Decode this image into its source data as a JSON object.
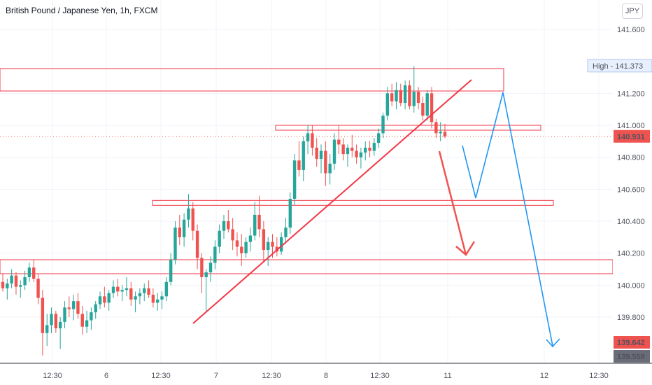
{
  "title": "British Pound / Japanese Yen, 1h, FXCM",
  "currency": "JPY",
  "chart_data": {
    "type": "candlestick",
    "y_ticks": [
      "141.600",
      "141.200",
      "141.000",
      "140.800",
      "140.600",
      "140.400",
      "140.200",
      "140.000",
      "139.800"
    ],
    "y_tick_values": [
      141.6,
      141.2,
      141.0,
      140.8,
      140.6,
      140.4,
      140.2,
      140.0,
      139.8
    ],
    "ylim": [
      139.5,
      141.75
    ],
    "x_ticks": [
      "12:30",
      "6",
      "12:30",
      "7",
      "12:30",
      "8",
      "12:30",
      "11",
      "12",
      "12:30"
    ],
    "price_labels": {
      "high": {
        "label": "High",
        "value": "141.373",
        "price": 141.373
      },
      "current": {
        "value": "140.931",
        "price": 140.931,
        "color": "#ef5350"
      },
      "target1": {
        "value": "139.642",
        "price": 139.642,
        "color": "#ef5350"
      },
      "low": {
        "value": "139.558",
        "price": 139.558,
        "color": "#6a6d78"
      }
    },
    "colors": {
      "up": "#26a69a",
      "down": "#ef5350",
      "projection": "#2196f3",
      "trendline": "#f23645"
    },
    "candles_ohlc": [
      [
        140.02,
        140.07,
        139.96,
        139.98
      ],
      [
        139.98,
        140.04,
        139.91,
        140.01
      ],
      [
        140.01,
        140.1,
        139.98,
        140.06
      ],
      [
        140.06,
        140.08,
        139.94,
        139.99
      ],
      [
        139.99,
        140.03,
        139.92,
        140.0
      ],
      [
        140.0,
        140.09,
        139.97,
        140.05
      ],
      [
        140.05,
        140.14,
        140.02,
        140.11
      ],
      [
        140.11,
        140.16,
        140.02,
        140.04
      ],
      [
        140.04,
        140.07,
        139.88,
        139.92
      ],
      [
        139.92,
        139.97,
        139.56,
        139.7
      ],
      [
        139.7,
        139.82,
        139.62,
        139.75
      ],
      [
        139.75,
        139.86,
        139.7,
        139.82
      ],
      [
        139.82,
        139.84,
        139.7,
        139.73
      ],
      [
        139.73,
        139.8,
        139.6,
        139.77
      ],
      [
        139.77,
        139.9,
        139.73,
        139.86
      ],
      [
        139.86,
        139.93,
        139.8,
        139.85
      ],
      [
        139.85,
        139.94,
        139.78,
        139.9
      ],
      [
        139.9,
        139.95,
        139.79,
        139.82
      ],
      [
        139.82,
        139.87,
        139.69,
        139.74
      ],
      [
        139.74,
        139.84,
        139.7,
        139.78
      ],
      [
        139.78,
        139.86,
        139.72,
        139.83
      ],
      [
        139.83,
        139.9,
        139.79,
        139.88
      ],
      [
        139.88,
        139.96,
        139.85,
        139.93
      ],
      [
        139.93,
        139.99,
        139.86,
        139.89
      ],
      [
        139.89,
        139.97,
        139.84,
        139.95
      ],
      [
        139.95,
        140.03,
        139.92,
        139.99
      ],
      [
        139.99,
        140.04,
        139.93,
        139.96
      ],
      [
        139.96,
        140.0,
        139.9,
        139.97
      ],
      [
        139.97,
        140.05,
        139.93,
        139.98
      ],
      [
        139.98,
        140.02,
        139.87,
        139.91
      ],
      [
        139.91,
        139.96,
        139.83,
        139.93
      ],
      [
        139.93,
        139.98,
        139.88,
        139.95
      ],
      [
        139.95,
        140.01,
        139.9,
        139.98
      ],
      [
        139.98,
        140.03,
        139.92,
        139.94
      ],
      [
        139.94,
        139.98,
        139.86,
        139.89
      ],
      [
        139.89,
        139.95,
        139.84,
        139.91
      ],
      [
        139.91,
        139.96,
        139.85,
        139.93
      ],
      [
        139.93,
        140.05,
        139.9,
        140.02
      ],
      [
        140.02,
        140.2,
        140.0,
        140.16
      ],
      [
        140.16,
        140.4,
        140.13,
        140.36
      ],
      [
        140.36,
        140.44,
        140.25,
        140.3
      ],
      [
        140.3,
        140.45,
        140.24,
        140.41
      ],
      [
        140.41,
        140.57,
        140.36,
        140.48
      ],
      [
        140.48,
        140.52,
        140.28,
        140.34
      ],
      [
        140.34,
        140.38,
        140.1,
        140.17
      ],
      [
        140.17,
        140.2,
        139.95,
        140.05
      ],
      [
        140.05,
        140.1,
        139.83,
        140.08
      ],
      [
        140.08,
        140.18,
        140.02,
        140.14
      ],
      [
        140.14,
        140.28,
        140.1,
        140.24
      ],
      [
        140.24,
        140.38,
        140.2,
        140.34
      ],
      [
        140.34,
        140.44,
        140.29,
        140.4
      ],
      [
        140.4,
        140.47,
        140.33,
        140.35
      ],
      [
        140.35,
        140.42,
        140.22,
        140.28
      ],
      [
        140.28,
        140.33,
        140.18,
        140.24
      ],
      [
        140.24,
        140.32,
        140.12,
        140.2
      ],
      [
        140.2,
        140.3,
        140.17,
        140.27
      ],
      [
        140.27,
        140.36,
        140.21,
        140.31
      ],
      [
        140.31,
        140.52,
        140.28,
        140.44
      ],
      [
        140.44,
        140.56,
        140.3,
        140.35
      ],
      [
        140.35,
        140.4,
        140.14,
        140.22
      ],
      [
        140.22,
        140.3,
        140.12,
        140.27
      ],
      [
        140.27,
        140.32,
        140.17,
        140.24
      ],
      [
        140.24,
        140.3,
        140.18,
        140.21
      ],
      [
        140.21,
        140.33,
        140.19,
        140.3
      ],
      [
        140.3,
        140.42,
        140.26,
        140.36
      ],
      [
        140.36,
        140.58,
        140.32,
        140.54
      ],
      [
        140.54,
        140.82,
        140.5,
        140.78
      ],
      [
        140.78,
        140.9,
        140.68,
        140.72
      ],
      [
        140.72,
        140.93,
        140.65,
        140.9
      ],
      [
        140.9,
        141.0,
        140.82,
        140.95
      ],
      [
        140.95,
        141.0,
        140.81,
        140.86
      ],
      [
        140.86,
        140.92,
        140.74,
        140.79
      ],
      [
        140.79,
        140.88,
        140.7,
        140.84
      ],
      [
        140.84,
        140.9,
        140.62,
        140.7
      ],
      [
        140.7,
        140.82,
        140.63,
        140.76
      ],
      [
        140.76,
        140.95,
        140.72,
        140.91
      ],
      [
        140.91,
        141.0,
        140.82,
        140.88
      ],
      [
        140.88,
        140.92,
        140.78,
        140.82
      ],
      [
        140.82,
        140.88,
        140.74,
        140.86
      ],
      [
        140.86,
        140.94,
        140.8,
        140.84
      ],
      [
        140.84,
        140.88,
        140.76,
        140.8
      ],
      [
        140.8,
        140.86,
        140.73,
        140.83
      ],
      [
        140.83,
        140.9,
        140.78,
        140.86
      ],
      [
        140.86,
        140.9,
        140.8,
        140.84
      ],
      [
        140.84,
        140.92,
        140.81,
        140.89
      ],
      [
        140.89,
        140.98,
        140.86,
        140.95
      ],
      [
        140.95,
        141.08,
        140.92,
        141.06
      ],
      [
        141.06,
        141.24,
        141.03,
        141.2
      ],
      [
        141.2,
        141.26,
        141.12,
        141.15
      ],
      [
        141.15,
        141.27,
        141.1,
        141.22
      ],
      [
        141.22,
        141.26,
        141.12,
        141.14
      ],
      [
        141.14,
        141.28,
        141.1,
        141.25
      ],
      [
        141.25,
        141.28,
        141.1,
        141.12
      ],
      [
        141.12,
        141.37,
        141.08,
        141.21
      ],
      [
        141.21,
        141.24,
        141.1,
        141.14
      ],
      [
        141.14,
        141.18,
        141.03,
        141.06
      ],
      [
        141.06,
        141.22,
        141.03,
        141.2
      ],
      [
        141.2,
        141.24,
        140.98,
        141.02
      ],
      [
        141.02,
        141.04,
        140.92,
        140.95
      ],
      [
        140.95,
        141.02,
        140.9,
        140.96
      ],
      [
        140.96,
        141.01,
        140.92,
        140.93
      ]
    ]
  },
  "annotations": {
    "zones": [
      {
        "name": "supply-zone-upper",
        "top": 141.35,
        "bottom": 141.2,
        "color": "#f23645"
      },
      {
        "name": "resistance-zone-141",
        "top": 141.0,
        "bottom": 140.98,
        "color": "#f23645"
      },
      {
        "name": "support-zone-140.5",
        "top": 140.53,
        "bottom": 140.51,
        "color": "#f23645"
      },
      {
        "name": "demand-zone-lower",
        "top": 140.15,
        "bottom": 140.07,
        "color": "#f23645"
      }
    ]
  }
}
